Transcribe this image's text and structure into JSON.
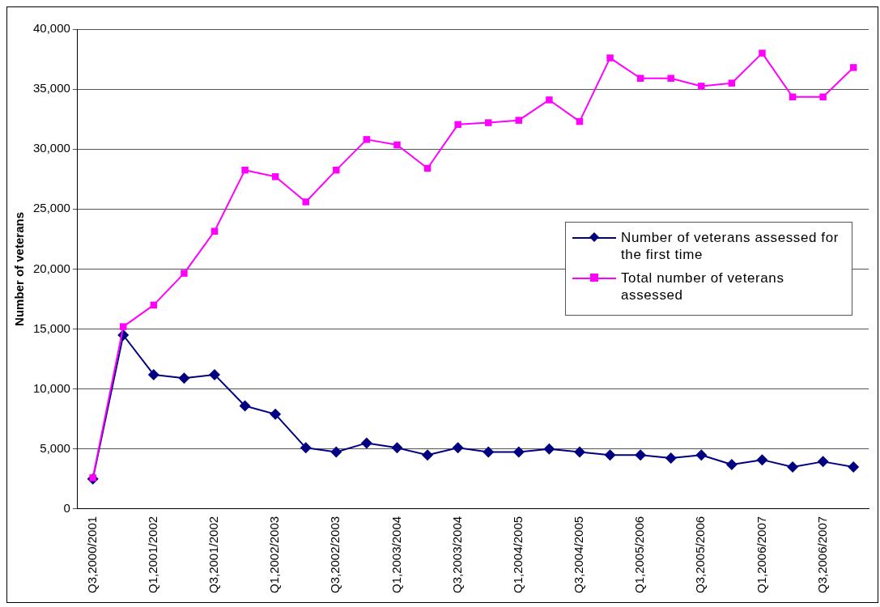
{
  "chart_data": {
    "type": "line",
    "ylabel": "Number of veterans",
    "categories": [
      "Q3,2000/2001",
      null,
      "Q1,2001/2002",
      null,
      "Q3,2001/2002",
      null,
      "Q1,2002/2003",
      null,
      "Q3,2002/2003",
      null,
      "Q1,2003/2004",
      null,
      "Q3,2003/2004",
      null,
      "Q1,2004/2005",
      null,
      "Q3,2004/2005",
      null,
      "Q1,2005/2006",
      null,
      "Q3,2005/2006",
      null,
      "Q1,2006/2007",
      null,
      "Q3,2006/2007",
      null
    ],
    "series": [
      {
        "name": "Number of veterans assessed for the first time",
        "color": "#000080",
        "marker": "diamond",
        "values": [
          2500,
          14500,
          11200,
          10900,
          11200,
          8600,
          7900,
          5100,
          4750,
          5500,
          5100,
          4500,
          5100,
          4750,
          4750,
          5000,
          4750,
          4500,
          4500,
          4250,
          4500,
          3700,
          4100,
          3500,
          3950,
          3500
        ]
      },
      {
        "name": "Total number of veterans assessed",
        "color": "#ff00ff",
        "marker": "square",
        "values": [
          2600,
          15200,
          17000,
          19650,
          23150,
          28250,
          27700,
          25600,
          28250,
          30800,
          30350,
          28400,
          32050,
          32200,
          32400,
          34100,
          32300,
          37600,
          35900,
          35900,
          35250,
          35500,
          38000,
          34350,
          34350,
          36800
        ]
      }
    ],
    "ylim": [
      0,
      40000
    ],
    "yticks": [
      0,
      {
        "value": 5000,
        "label": "5,000"
      },
      {
        "value": 10000,
        "label": "10,000"
      },
      {
        "value": 15000,
        "label": "15,000"
      },
      {
        "value": 20000,
        "label": "20,000"
      },
      {
        "value": 25000,
        "label": "25,000"
      },
      {
        "value": 30000,
        "label": "30,000"
      },
      {
        "value": 35000,
        "label": "35,000"
      },
      {
        "value": 40000,
        "label": "40,000"
      }
    ],
    "grid": "y",
    "legend": "right",
    "line_style": "solid"
  }
}
